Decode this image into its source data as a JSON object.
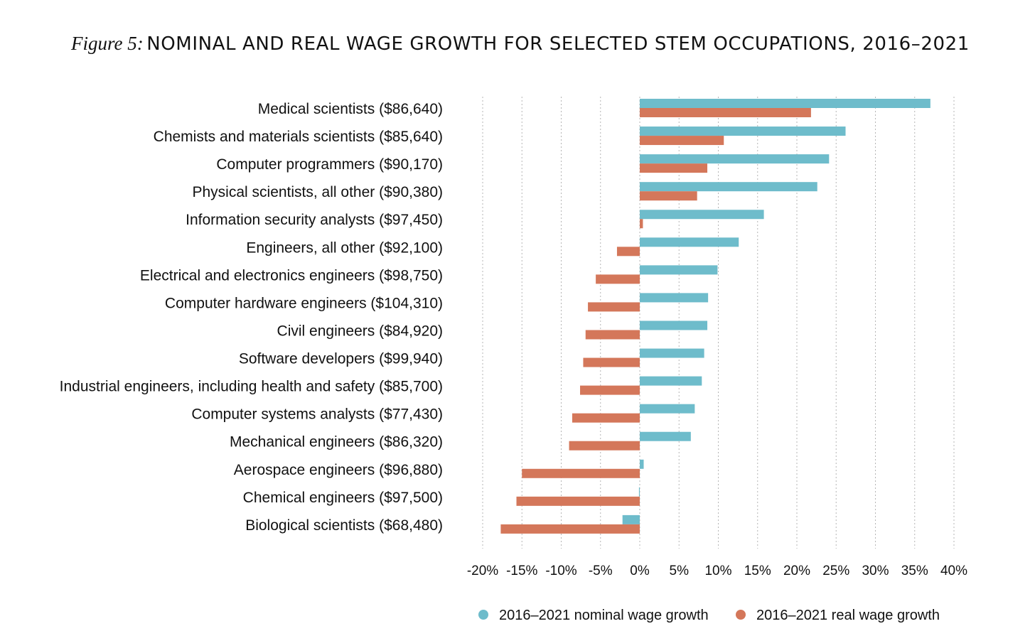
{
  "figure": {
    "label": "Figure 5:",
    "title": "NOMINAL AND REAL WAGE GROWTH FOR SELECTED STEM OCCUPATIONS, 2016–2021"
  },
  "colors": {
    "nominal": "#6ebccb",
    "real": "#d4775a",
    "grid": "#b5b5b5"
  },
  "chart_data": {
    "type": "bar",
    "orientation": "horizontal",
    "title": "NOMINAL AND REAL WAGE GROWTH FOR SELECTED STEM OCCUPATIONS, 2016–2021",
    "xlabel": "",
    "ylabel": "",
    "xlim": [
      -20,
      40
    ],
    "x_ticks": [
      -20,
      -15,
      -10,
      -5,
      0,
      5,
      10,
      15,
      20,
      25,
      30,
      35,
      40
    ],
    "x_tick_labels": [
      "-20%",
      "-15%",
      "-10%",
      "-5%",
      "0%",
      "5%",
      "10%",
      "15%",
      "20%",
      "25%",
      "30%",
      "35%",
      "40%"
    ],
    "grid": true,
    "legend_position": "bottom",
    "categories": [
      "Medical scientists ($86,640)",
      "Chemists and materials scientists ($85,640)",
      "Computer programmers ($90,170)",
      "Physical scientists, all other ($90,380)",
      "Information security analysts ($97,450)",
      "Engineers, all other ($92,100)",
      "Electrical and electronics engineers ($98,750)",
      "Computer hardware engineers ($104,310)",
      "Civil engineers ($84,920)",
      "Software developers ($99,940)",
      "Industrial engineers, including health and safety ($85,700)",
      "Computer systems analysts ($77,430)",
      "Mechanical engineers ($86,320)",
      "Aerospace engineers ($96,880)",
      "Chemical engineers ($97,500)",
      "Biological scientists ($68,480)"
    ],
    "series": [
      {
        "name": "2016–2021 nominal wage growth",
        "color": "#6ebccb",
        "values": [
          37.0,
          26.2,
          24.1,
          22.6,
          15.8,
          12.6,
          9.9,
          8.7,
          8.6,
          8.2,
          7.9,
          7.0,
          6.5,
          0.5,
          -0.1,
          -2.2
        ]
      },
      {
        "name": "2016–2021 real wage growth",
        "color": "#d4775a",
        "values": [
          21.8,
          10.7,
          8.6,
          7.3,
          0.4,
          -2.9,
          -5.6,
          -6.6,
          -6.9,
          -7.2,
          -7.6,
          -8.6,
          -9.0,
          -15.0,
          -15.7,
          -17.7
        ]
      }
    ]
  }
}
